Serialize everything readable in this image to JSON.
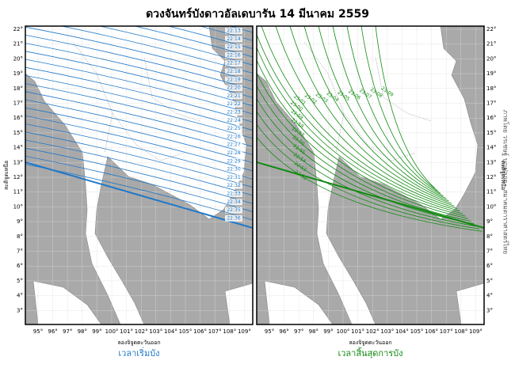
{
  "title": "ดวงจันทร์บังดาวอัลเดบารัน 14 มีนาคม 2559",
  "lat_ticks": [
    "22°",
    "21°",
    "20°",
    "19°",
    "18°",
    "17°",
    "16°",
    "15°",
    "14°",
    "13°",
    "12°",
    "11°",
    "10°",
    "9°",
    "8°",
    "7°",
    "6°",
    "5°",
    "4°",
    "3°"
  ],
  "lon_ticks": [
    "95°",
    "96°",
    "97°",
    "98°",
    "99°",
    "100°",
    "101°",
    "102°",
    "103°",
    "104°",
    "105°",
    "106°",
    "107°",
    "108°",
    "109°"
  ],
  "lat_axis_label": "ละติจูดเหนือ",
  "lon_axis_label": "ลองจิจูดตะวันออก",
  "panels": [
    {
      "caption": "เวลาเริ่มบัง",
      "color": "#1f78c8",
      "times": [
        "22:13",
        "22:14",
        "22:15",
        "22:16",
        "22:17",
        "22:18",
        "22:19",
        "22:20",
        "22:21",
        "22:22",
        "22:23",
        "22:24",
        "22:25",
        "22:26",
        "22:27",
        "22:28",
        "22:29",
        "22:30",
        "22:31",
        "22:32",
        "22:33",
        "22:34",
        "22:35",
        "22:36"
      ]
    },
    {
      "caption": "เวลาสิ้นสุดการบัง",
      "color": "#118a11",
      "times": [
        "23:09",
        "23:08",
        "23:07",
        "23:06",
        "23:05",
        "23:04",
        "23:03",
        "23:02",
        "23:01",
        "23:00",
        "22:59",
        "22:58",
        "22:57",
        "22:56",
        "22:55",
        "22:54",
        "22:53",
        "22:52"
      ]
    }
  ],
  "credit": "ภาพโดย วรเชษฐ์ บุญปลอด - สมาคมดาราศาสตร์ไทย"
}
